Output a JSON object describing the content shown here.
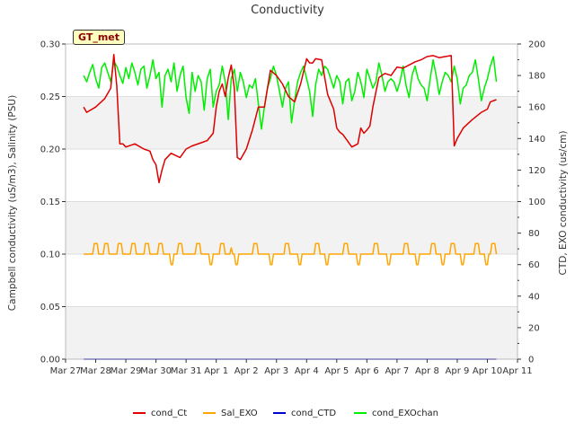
{
  "chart_data": {
    "type": "line",
    "title": "Conductivity",
    "ylabel_left": "Campbell conductivity (uS/m3), Salinity (PSU)",
    "ylabel_right": "CTD, EXO conductivity (us/cm)",
    "ylim_left": [
      0,
      0.3
    ],
    "ylim_right": [
      0,
      200
    ],
    "yticks_left": [
      "0.00",
      "0.05",
      "0.10",
      "0.15",
      "0.20",
      "0.25",
      "0.30"
    ],
    "yticks_right": [
      "0",
      "20",
      "40",
      "60",
      "80",
      "100",
      "120",
      "140",
      "160",
      "180",
      "200"
    ],
    "xticks": [
      "Mar 27",
      "Mar 28",
      "Mar 29",
      "Mar 30",
      "Mar 31",
      "Apr 1",
      "Apr 2",
      "Apr 3",
      "Apr 4",
      "Apr 5",
      "Apr 6",
      "Apr 7",
      "Apr 8",
      "Apr 9",
      "Apr 10",
      "Apr 11"
    ],
    "xlim": [
      0,
      15
    ],
    "grid": true,
    "legend_position": "bottom",
    "badge": "GT_met",
    "series": [
      {
        "name": "cond_Ct",
        "axis": "left",
        "color": "#dd0000",
        "x": [
          0.6,
          0.7,
          1.0,
          1.3,
          1.5,
          1.6,
          1.7,
          1.8,
          1.9,
          2.0,
          2.3,
          2.6,
          2.8,
          2.9,
          3.0,
          3.1,
          3.2,
          3.3,
          3.5,
          3.8,
          4.0,
          4.2,
          4.5,
          4.7,
          4.9,
          5.0,
          5.1,
          5.2,
          5.3,
          5.4,
          5.5,
          5.6,
          5.7,
          5.8,
          6.0,
          6.2,
          6.4,
          6.6,
          6.8,
          7.0,
          7.2,
          7.4,
          7.6,
          7.8,
          8.0,
          8.1,
          8.2,
          8.3,
          8.5,
          8.7,
          8.9,
          9.0,
          9.1,
          9.2,
          9.3,
          9.5,
          9.7,
          9.8,
          9.9,
          10.0,
          10.1,
          10.2,
          10.4,
          10.6,
          10.8,
          11.0,
          11.2,
          11.4,
          11.6,
          11.8,
          12.0,
          12.2,
          12.4,
          12.6,
          12.8,
          12.9,
          13.0,
          13.2,
          13.5,
          13.8,
          14.0,
          14.1,
          14.3
        ],
        "y": [
          0.24,
          0.235,
          0.24,
          0.248,
          0.258,
          0.29,
          0.26,
          0.205,
          0.205,
          0.202,
          0.205,
          0.2,
          0.198,
          0.19,
          0.185,
          0.168,
          0.18,
          0.19,
          0.196,
          0.192,
          0.2,
          0.203,
          0.206,
          0.208,
          0.215,
          0.24,
          0.255,
          0.262,
          0.25,
          0.268,
          0.28,
          0.258,
          0.192,
          0.19,
          0.2,
          0.218,
          0.24,
          0.24,
          0.275,
          0.27,
          0.262,
          0.25,
          0.245,
          0.262,
          0.286,
          0.282,
          0.282,
          0.286,
          0.285,
          0.252,
          0.238,
          0.22,
          0.216,
          0.214,
          0.21,
          0.202,
          0.205,
          0.22,
          0.215,
          0.218,
          0.222,
          0.24,
          0.268,
          0.272,
          0.27,
          0.278,
          0.277,
          0.28,
          0.283,
          0.285,
          0.288,
          0.289,
          0.287,
          0.288,
          0.289,
          0.203,
          0.21,
          0.22,
          0.228,
          0.235,
          0.238,
          0.245,
          0.247
        ]
      },
      {
        "name": "Sal_EXO",
        "axis": "left",
        "color": "#ffa500",
        "x": [
          0.6,
          0.9,
          0.95,
          1.05,
          1.1,
          1.25,
          1.3,
          1.4,
          1.45,
          1.7,
          1.75,
          1.85,
          1.9,
          2.15,
          2.2,
          2.3,
          2.35,
          2.6,
          2.65,
          2.75,
          2.8,
          3.05,
          3.1,
          3.2,
          3.25,
          3.45,
          3.5,
          3.55,
          3.6,
          3.7,
          3.75,
          3.85,
          3.9,
          4.3,
          4.35,
          4.45,
          4.5,
          4.75,
          4.8,
          4.85,
          4.9,
          5.1,
          5.15,
          5.25,
          5.3,
          5.45,
          5.5,
          5.55,
          5.6,
          5.65,
          5.7,
          5.75,
          5.8,
          6.2,
          6.25,
          6.35,
          6.4,
          6.75,
          6.8,
          6.85,
          6.9,
          7.25,
          7.3,
          7.4,
          7.45,
          7.7,
          7.75,
          7.8,
          7.85,
          8.25,
          8.3,
          8.4,
          8.45,
          8.6,
          8.65,
          8.7,
          8.75,
          9.2,
          9.25,
          9.35,
          9.4,
          9.65,
          9.7,
          9.75,
          9.8,
          10.2,
          10.25,
          10.35,
          10.4,
          10.65,
          10.7,
          10.75,
          10.8,
          11.2,
          11.25,
          11.35,
          11.4,
          11.6,
          11.65,
          11.7,
          11.75,
          12.1,
          12.15,
          12.25,
          12.3,
          12.45,
          12.5,
          12.55,
          12.6,
          12.75,
          12.8,
          12.9,
          12.95,
          13.1,
          13.15,
          13.2,
          13.25,
          13.55,
          13.6,
          13.7,
          13.75,
          13.9,
          13.95,
          14.0,
          14.05,
          14.1,
          14.15,
          14.25,
          14.3
        ],
        "y": [
          0.1,
          0.1,
          0.11,
          0.11,
          0.1,
          0.1,
          0.11,
          0.11,
          0.1,
          0.1,
          0.11,
          0.11,
          0.1,
          0.1,
          0.11,
          0.11,
          0.1,
          0.1,
          0.11,
          0.11,
          0.1,
          0.1,
          0.11,
          0.11,
          0.1,
          0.1,
          0.09,
          0.09,
          0.1,
          0.1,
          0.11,
          0.11,
          0.1,
          0.1,
          0.11,
          0.11,
          0.1,
          0.1,
          0.09,
          0.09,
          0.1,
          0.1,
          0.11,
          0.11,
          0.1,
          0.1,
          0.106,
          0.1,
          0.1,
          0.09,
          0.09,
          0.1,
          0.1,
          0.1,
          0.11,
          0.11,
          0.1,
          0.1,
          0.09,
          0.09,
          0.1,
          0.1,
          0.11,
          0.11,
          0.1,
          0.1,
          0.09,
          0.09,
          0.1,
          0.1,
          0.11,
          0.11,
          0.1,
          0.1,
          0.09,
          0.09,
          0.1,
          0.1,
          0.11,
          0.11,
          0.1,
          0.1,
          0.09,
          0.09,
          0.1,
          0.1,
          0.11,
          0.11,
          0.1,
          0.1,
          0.09,
          0.09,
          0.1,
          0.1,
          0.11,
          0.11,
          0.1,
          0.1,
          0.09,
          0.09,
          0.1,
          0.1,
          0.11,
          0.11,
          0.1,
          0.1,
          0.09,
          0.09,
          0.1,
          0.1,
          0.11,
          0.11,
          0.1,
          0.1,
          0.09,
          0.09,
          0.1,
          0.1,
          0.11,
          0.11,
          0.1,
          0.1,
          0.09,
          0.09,
          0.1,
          0.1,
          0.11,
          0.11,
          0.1
        ]
      },
      {
        "name": "cond_CTD",
        "axis": "right",
        "color": "#0000cc",
        "x": [
          0.6,
          14.3
        ],
        "y": [
          0,
          0
        ]
      },
      {
        "name": "cond_EXOchan",
        "axis": "right",
        "color": "#00ee00",
        "x": [
          0.6,
          0.7,
          0.8,
          0.9,
          1.0,
          1.1,
          1.2,
          1.3,
          1.4,
          1.5,
          1.6,
          1.7,
          1.8,
          1.9,
          2.0,
          2.1,
          2.2,
          2.3,
          2.4,
          2.5,
          2.6,
          2.7,
          2.8,
          2.9,
          3.0,
          3.1,
          3.2,
          3.3,
          3.4,
          3.5,
          3.6,
          3.7,
          3.8,
          3.9,
          4.0,
          4.1,
          4.2,
          4.3,
          4.4,
          4.5,
          4.6,
          4.7,
          4.8,
          4.9,
          5.0,
          5.1,
          5.2,
          5.3,
          5.4,
          5.5,
          5.6,
          5.7,
          5.8,
          5.9,
          6.0,
          6.1,
          6.2,
          6.3,
          6.4,
          6.5,
          6.6,
          6.7,
          6.8,
          6.9,
          7.0,
          7.1,
          7.2,
          7.3,
          7.4,
          7.5,
          7.6,
          7.7,
          7.8,
          7.9,
          8.0,
          8.1,
          8.2,
          8.3,
          8.4,
          8.5,
          8.6,
          8.7,
          8.8,
          8.9,
          9.0,
          9.1,
          9.2,
          9.3,
          9.4,
          9.5,
          9.6,
          9.7,
          9.8,
          9.9,
          10.0,
          10.1,
          10.2,
          10.3,
          10.4,
          10.5,
          10.6,
          10.7,
          10.8,
          10.9,
          11.0,
          11.1,
          11.2,
          11.3,
          11.4,
          11.5,
          11.6,
          11.7,
          11.8,
          11.9,
          12.0,
          12.1,
          12.2,
          12.3,
          12.4,
          12.5,
          12.6,
          12.7,
          12.8,
          12.9,
          13.0,
          13.1,
          13.2,
          13.3,
          13.4,
          13.5,
          13.6,
          13.7,
          13.8,
          13.9,
          14.0,
          14.1,
          14.2,
          14.3
        ],
        "y": [
          180,
          176,
          182,
          187,
          178,
          172,
          185,
          188,
          182,
          176,
          189,
          186,
          180,
          175,
          185,
          178,
          188,
          182,
          174,
          184,
          186,
          172,
          180,
          190,
          178,
          182,
          160,
          180,
          184,
          176,
          188,
          170,
          180,
          186,
          166,
          156,
          182,
          170,
          180,
          176,
          158,
          178,
          184,
          160,
          170,
          174,
          186,
          176,
          152,
          178,
          184,
          170,
          182,
          176,
          166,
          174,
          172,
          178,
          162,
          146,
          160,
          172,
          178,
          186,
          180,
          170,
          160,
          172,
          176,
          150,
          164,
          176,
          182,
          186,
          178,
          170,
          154,
          174,
          184,
          180,
          186,
          184,
          178,
          172,
          180,
          176,
          162,
          176,
          178,
          164,
          170,
          182,
          176,
          166,
          184,
          178,
          172,
          176,
          188,
          180,
          170,
          176,
          178,
          176,
          170,
          176,
          186,
          174,
          166,
          180,
          186,
          178,
          174,
          172,
          164,
          178,
          190,
          180,
          168,
          176,
          182,
          180,
          176,
          186,
          178,
          162,
          172,
          174,
          180,
          182,
          190,
          178,
          164,
          172,
          178,
          186,
          192,
          176
        ]
      }
    ]
  }
}
